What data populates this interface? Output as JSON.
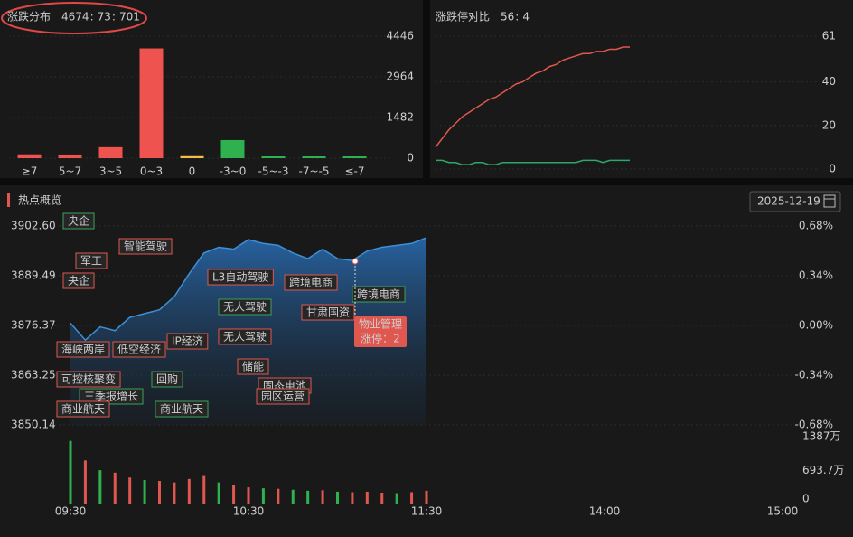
{
  "chart_data": [
    {
      "type": "bar",
      "title": "涨跌分布",
      "summary": [
        4674,
        73,
        701
      ],
      "summary_colors": [
        "#ef5350",
        "#f0c040",
        "#2fb14f"
      ],
      "separator": ":",
      "categories": [
        "≥7",
        "5~7",
        "3~5",
        "0~3",
        "0",
        "-3~0",
        "-5~-3",
        "-7~-5",
        "≤-7"
      ],
      "values": [
        140,
        134,
        400,
        4000,
        73,
        660,
        30,
        8,
        3
      ],
      "colors": [
        "#ef5350",
        "#ef5350",
        "#ef5350",
        "#ef5350",
        "#f0c040",
        "#2fb14f",
        "#2fb14f",
        "#2fb14f",
        "#2fb14f"
      ],
      "ylim": [
        0,
        4446
      ],
      "yticks": [
        0,
        1482,
        2964,
        4446
      ]
    },
    {
      "type": "line",
      "title": "涨跌停对比",
      "summary": [
        56,
        4
      ],
      "summary_colors": [
        "#ef5350",
        "#2fb14f"
      ],
      "separator": ":",
      "series": [
        {
          "color": "#e0574f",
          "values": [
            10,
            14,
            18,
            21,
            24,
            26,
            28,
            30,
            32,
            33,
            35,
            37,
            39,
            40,
            42,
            44,
            45,
            47,
            48,
            50,
            51,
            52,
            53,
            53,
            54,
            54,
            55,
            55,
            56,
            56
          ]
        },
        {
          "color": "#2fa866",
          "values": [
            4,
            4,
            3,
            3,
            2,
            2,
            3,
            3,
            2,
            2,
            3,
            3,
            3,
            3,
            3,
            3,
            3,
            3,
            3,
            3,
            3,
            3,
            4,
            4,
            4,
            3,
            4,
            4,
            4,
            4
          ]
        }
      ],
      "ylim": [
        0,
        61
      ],
      "yticks": [
        0,
        20,
        40,
        61
      ]
    },
    {
      "type": "area",
      "title": "热点概览",
      "date": "2025-12-19",
      "x": [
        0,
        5,
        10,
        15,
        20,
        25,
        30,
        35,
        40,
        45,
        50,
        55,
        60,
        65,
        70,
        75,
        80,
        85,
        90,
        95,
        100,
        105,
        110,
        115,
        120
      ],
      "series": [
        {
          "color": "#3d8fd6",
          "values": [
            3877.0,
            3872.5,
            3876.0,
            3875.0,
            3878.5,
            3879.5,
            3880.5,
            3884.0,
            3890.0,
            3895.5,
            3897.0,
            3896.5,
            3899.0,
            3898.0,
            3897.5,
            3895.5,
            3894.0,
            3896.5,
            3894.0,
            3893.5,
            3896.0,
            3897.0,
            3897.5,
            3898.0,
            3899.5
          ]
        }
      ],
      "xlim": [
        0,
        240
      ],
      "xticks": [
        {
          "value": 0,
          "label": "09:30"
        },
        {
          "value": 60,
          "label": "10:30"
        },
        {
          "value": 120,
          "label": "11:30"
        },
        {
          "value": 180,
          "label": "14:00"
        },
        {
          "value": 240,
          "label": "15:00"
        }
      ],
      "ylim": [
        3850.14,
        3902.6
      ],
      "yticks": [
        3850.14,
        3863.25,
        3876.37,
        3889.49,
        {
          "value": 3902.6,
          "label": "3902.60"
        }
      ],
      "y2lim": [
        -0.68,
        0.68
      ],
      "y2ticks": [
        {
          "value": -0.68,
          "label": "-0.68%"
        },
        {
          "value": -0.34,
          "label": "-0.34%"
        },
        {
          "value": 0,
          "label": "0.00%"
        },
        {
          "value": 0.34,
          "label": "0.34%"
        },
        {
          "value": 0.68,
          "label": "0.68%"
        }
      ],
      "volume": {
        "values": [
          13000000,
          9000000,
          7000000,
          6500000,
          5500000,
          5000000,
          4800000,
          4500000,
          5200000,
          6000000,
          4500000,
          4000000,
          3500000,
          3300000,
          3200000,
          3000000,
          2800000,
          2900000,
          2600000,
          2500000,
          2600000,
          2400000,
          2300000,
          2500000,
          2800000
        ],
        "colors": [
          "#2fb14f",
          "#e0574f",
          "#2fb14f",
          "#e0574f",
          "#e0574f",
          "#2fb14f",
          "#e0574f",
          "#e0574f",
          "#e0574f",
          "#e0574f",
          "#2fb14f",
          "#e0574f",
          "#e0574f",
          "#2fb14f",
          "#e0574f",
          "#2fb14f",
          "#2fb14f",
          "#e0574f",
          "#2fb14f",
          "#e0574f",
          "#e0574f",
          "#e0574f",
          "#2fb14f",
          "#e0574f",
          "#e0574f"
        ],
        "ylim": [
          0,
          13870000
        ],
        "yticks": [
          0,
          {
            "value": 6937000,
            "label": "693.7万"
          },
          {
            "value": 13870000,
            "label": "1387万"
          }
        ]
      },
      "tags": [
        {
          "label": "央企",
          "color": "#3aa35a"
        },
        {
          "label": "智能驾驶",
          "color": "#e0574f"
        },
        {
          "label": "军工",
          "color": "#e0574f"
        },
        {
          "label": "央企",
          "color": "#e0574f"
        },
        {
          "label": "海峡两岸",
          "color": "#e0574f"
        },
        {
          "label": "低空经济",
          "color": "#e0574f"
        },
        {
          "label": "IP经济",
          "color": "#e0574f"
        },
        {
          "label": "L3自动驾驶",
          "color": "#e0574f"
        },
        {
          "label": "跨境电商",
          "color": "#e0574f"
        },
        {
          "label": "无人驾驶",
          "color": "#3aa35a"
        },
        {
          "label": "甘肃国资",
          "color": "#e0574f"
        },
        {
          "label": "跨境电商",
          "color": "#3aa35a"
        },
        {
          "label": "无人驾驶",
          "color": "#e0574f"
        },
        {
          "label": "储能",
          "color": "#e0574f"
        },
        {
          "label": "回购",
          "color": "#3aa35a"
        },
        {
          "label": "固态电池",
          "color": "#e0574f"
        },
        {
          "label": "可控核聚变",
          "color": "#e0574f"
        },
        {
          "label": "园区运营",
          "color": "#e0574f"
        },
        {
          "label": "三季报增长",
          "color": "#3aa35a"
        },
        {
          "label": "商业航天",
          "color": "#e0574f"
        },
        {
          "label": "商业航天",
          "color": "#3aa35a"
        }
      ],
      "popup": {
        "title": "物业管理",
        "text": "涨停：2"
      }
    }
  ]
}
